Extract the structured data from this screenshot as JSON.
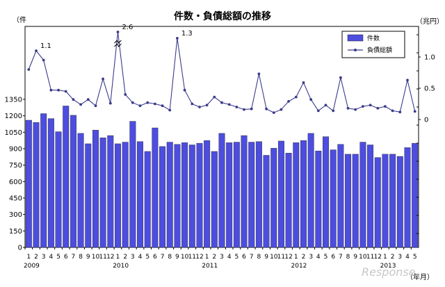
{
  "chart_data": {
    "type": "bar+line",
    "title": "件数・負債総額の推移",
    "left_unit": "（件",
    "right_unit": "（兆円）",
    "xlabel": "（年月）",
    "x_month_labels": [
      "1",
      "2",
      "3",
      "4",
      "5",
      "6",
      "7",
      "8",
      "9",
      "10",
      "11",
      "12",
      "1",
      "2",
      "3",
      "4",
      "5",
      "6",
      "7",
      "8",
      "9",
      "10",
      "11",
      "12",
      "1",
      "2",
      "3",
      "4",
      "5",
      "6",
      "7",
      "8",
      "9",
      "10",
      "11",
      "12",
      "1",
      "2",
      "3",
      "4",
      "5",
      "6",
      "7",
      "8",
      "9",
      "10",
      "11",
      "12",
      "1",
      "2",
      "3",
      "4",
      "5"
    ],
    "year_labels": [
      {
        "label": "2009",
        "index": 0
      },
      {
        "label": "2010",
        "index": 12
      },
      {
        "label": "2011",
        "index": 24
      },
      {
        "label": "2012",
        "index": 36
      },
      {
        "label": "2013",
        "index": 48
      }
    ],
    "ylim_left": [
      0,
      1350
    ],
    "yticks_left": [
      0,
      150,
      300,
      450,
      600,
      750,
      900,
      1050,
      1200,
      1350
    ],
    "ylim_right": [
      0,
      1.0
    ],
    "yticks_right": [
      "0",
      "0.5",
      "1.0"
    ],
    "series": [
      {
        "name": "件数",
        "kind": "bar",
        "color": "#4d4de0",
        "values": [
          1160,
          1140,
          1220,
          1175,
          1055,
          1290,
          1205,
          1040,
          945,
          1070,
          1000,
          1020,
          945,
          960,
          1150,
          965,
          875,
          1090,
          920,
          960,
          940,
          955,
          935,
          950,
          975,
          875,
          1040,
          955,
          960,
          1020,
          960,
          965,
          840,
          905,
          970,
          860,
          955,
          975,
          1040,
          880,
          1010,
          890,
          940,
          850,
          850,
          960,
          935,
          820,
          850,
          850,
          830,
          910,
          950
        ]
      },
      {
        "name": "負債総額",
        "kind": "line",
        "color": "#3a3a8c",
        "values": [
          0.8,
          1.1,
          0.95,
          0.47,
          0.47,
          0.45,
          0.32,
          0.24,
          0.32,
          0.22,
          0.65,
          0.26,
          2.6,
          0.4,
          0.27,
          0.22,
          0.27,
          0.25,
          0.22,
          0.15,
          1.3,
          0.47,
          0.25,
          0.2,
          0.23,
          0.36,
          0.27,
          0.24,
          0.2,
          0.16,
          0.17,
          0.73,
          0.17,
          0.11,
          0.16,
          0.29,
          0.36,
          0.59,
          0.32,
          0.14,
          0.23,
          0.14,
          0.67,
          0.18,
          0.16,
          0.21,
          0.23,
          0.18,
          0.21,
          0.14,
          0.12,
          0.63,
          0.13
        ]
      }
    ],
    "annotations": [
      {
        "index": 1,
        "text": "1.1"
      },
      {
        "index": 12,
        "text": "2.6"
      },
      {
        "index": 20,
        "text": "1.3"
      }
    ],
    "legend_position": "top-right",
    "grid": false
  },
  "watermark": "Response."
}
